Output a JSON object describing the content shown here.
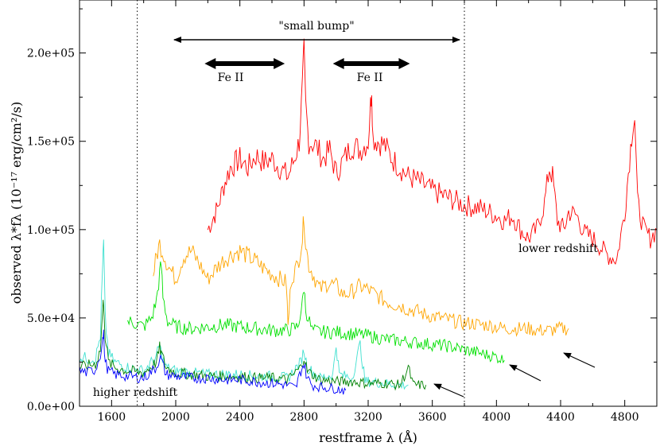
{
  "chart_data": {
    "type": "line",
    "xlabel": "restframe λ (Å)",
    "ylabel": "observed λ*fλ (10⁻¹⁷ erg/cm²/s)",
    "xlim": [
      1400,
      5000
    ],
    "ylim": [
      0,
      230000
    ],
    "xticks": [
      1600,
      2000,
      2400,
      2800,
      3200,
      3600,
      4000,
      4400,
      4800
    ],
    "yticks": [
      0,
      50000,
      100000,
      150000,
      200000
    ],
    "xtick_labels": [
      "1600",
      "2000",
      "2400",
      "2800",
      "3200",
      "3600",
      "4000",
      "4400",
      "4800"
    ],
    "ytick_labels": [
      "0.0e+00",
      "5.0e+04",
      "1.0e+05",
      "1.5e+05",
      "2.0e+05"
    ],
    "grid": false,
    "legend": "none",
    "vertical_lines": [
      1760,
      3800
    ],
    "annotations": {
      "small_bump": {
        "text": "\"small bump\"",
        "x_range": [
          1960,
          3800
        ]
      },
      "fe2_left": {
        "text": "Fe II",
        "x_range": [
          2180,
          2680
        ]
      },
      "fe2_right": {
        "text": "Fe II",
        "x_range": [
          2980,
          3460
        ]
      },
      "lower_redshift": "lower redshift",
      "higher_redshift": "higher redshift"
    },
    "series": [
      {
        "color": "#ff0000",
        "x": [
          2200,
          2260,
          2300,
          2340,
          2400,
          2450,
          2500,
          2550,
          2600,
          2650,
          2700,
          2740,
          2770,
          2790,
          2800,
          2810,
          2830,
          2870,
          2920,
          2960,
          3000,
          3050,
          3100,
          3150,
          3200,
          3215,
          3222,
          3230,
          3260,
          3300,
          3350,
          3400,
          3450,
          3500,
          3550,
          3600,
          3650,
          3700,
          3750,
          3800,
          3850,
          3900,
          3950,
          4000,
          4050,
          4100,
          4150,
          4200,
          4250,
          4300,
          4330,
          4350,
          4380,
          4420,
          4450,
          4500,
          4550,
          4600,
          4650,
          4700,
          4750,
          4800,
          4830,
          4850,
          4862,
          4880,
          4920,
          4960,
          5000
        ],
        "y": [
          100000,
          112000,
          125000,
          135000,
          140000,
          135000,
          142000,
          138000,
          140000,
          135000,
          130000,
          140000,
          150000,
          180000,
          200000,
          170000,
          150000,
          148000,
          140000,
          145000,
          132000,
          140000,
          148000,
          145000,
          150000,
          170000,
          182000,
          152000,
          150000,
          148000,
          140000,
          135000,
          130000,
          128000,
          125000,
          122000,
          120000,
          118000,
          116000,
          114000,
          113000,
          112000,
          110000,
          108000,
          105000,
          108000,
          100000,
          95000,
          100000,
          115000,
          135000,
          130000,
          105000,
          100000,
          110000,
          108000,
          98000,
          95000,
          90000,
          85000,
          83000,
          110000,
          140000,
          160000,
          163000,
          115000,
          100000,
          95000,
          100000
        ]
      },
      {
        "color": "#ffa500",
        "x": [
          1860,
          1880,
          1900,
          1950,
          2000,
          2050,
          2100,
          2150,
          2200,
          2250,
          2300,
          2350,
          2400,
          2450,
          2500,
          2550,
          2600,
          2650,
          2690,
          2700,
          2720,
          2760,
          2790,
          2800,
          2810,
          2830,
          2870,
          2900,
          2950,
          3000,
          3050,
          3100,
          3150,
          3200,
          3250,
          3300,
          3350,
          3400,
          3450,
          3500,
          3550,
          3600,
          3650,
          3700,
          3750,
          3800,
          3850,
          3900,
          3950,
          4000,
          4050,
          4100,
          4150,
          4200,
          4250,
          4300,
          4350,
          4400,
          4450
        ],
        "y": [
          75000,
          85000,
          92000,
          80000,
          72000,
          85000,
          88000,
          80000,
          72000,
          78000,
          83000,
          86000,
          88000,
          85000,
          82000,
          78000,
          75000,
          72000,
          70000,
          45000,
          72000,
          80000,
          95000,
          108000,
          92000,
          80000,
          72000,
          66000,
          70000,
          68000,
          63000,
          65000,
          68000,
          66000,
          63000,
          60000,
          58000,
          57000,
          55000,
          54000,
          52000,
          51000,
          50000,
          49000,
          48000,
          47000,
          47000,
          46000,
          46000,
          45000,
          44000,
          44000,
          44000,
          44000,
          43000,
          43000,
          43000,
          44000,
          44000
        ]
      },
      {
        "color": "#00e000",
        "x": [
          1700,
          1750,
          1800,
          1850,
          1880,
          1900,
          1910,
          1920,
          1950,
          2000,
          2100,
          2200,
          2300,
          2400,
          2500,
          2600,
          2700,
          2760,
          2790,
          2800,
          2810,
          2850,
          2900,
          3000,
          3100,
          3200,
          3300,
          3400,
          3500,
          3600,
          3700,
          3800,
          3900,
          4000,
          4050
        ],
        "y": [
          48000,
          47000,
          45000,
          50000,
          60000,
          75000,
          80000,
          62000,
          48000,
          45000,
          44000,
          45000,
          46000,
          45000,
          44000,
          43000,
          43000,
          45000,
          58000,
          68000,
          55000,
          43000,
          42000,
          42000,
          41000,
          40000,
          38000,
          37000,
          36000,
          35000,
          34000,
          32000,
          30000,
          28000,
          26000
        ]
      },
      {
        "color": "#40e0d0",
        "x": [
          1400,
          1450,
          1500,
          1530,
          1545,
          1550,
          1560,
          1580,
          1620,
          1700,
          1800,
          1880,
          1900,
          1910,
          1940,
          2000,
          2100,
          2200,
          2300,
          2400,
          2500,
          2600,
          2700,
          2780,
          2800,
          2820,
          2900,
          2980,
          3000,
          3020,
          3100,
          3150,
          3180,
          3200,
          3300,
          3400,
          3450
        ],
        "y": [
          28000,
          27000,
          27000,
          40000,
          80000,
          92000,
          50000,
          30000,
          25000,
          22000,
          20000,
          28000,
          35000,
          30000,
          22000,
          20000,
          19000,
          18000,
          18000,
          18000,
          17000,
          17000,
          16000,
          25000,
          32000,
          22000,
          16000,
          18000,
          35000,
          18000,
          16000,
          35000,
          14000,
          14000,
          13000,
          12000,
          12000
        ]
      },
      {
        "color": "#008000",
        "x": [
          1400,
          1450,
          1500,
          1530,
          1545,
          1550,
          1560,
          1580,
          1620,
          1700,
          1800,
          1880,
          1900,
          1910,
          1940,
          2000,
          2100,
          2200,
          2300,
          2400,
          2500,
          2600,
          2700,
          2780,
          2800,
          2820,
          2900,
          3000,
          3100,
          3200,
          3300,
          3400,
          3450,
          3480,
          3500,
          3560
        ],
        "y": [
          22000,
          23000,
          24000,
          32000,
          55000,
          60000,
          40000,
          25000,
          22000,
          20000,
          19000,
          25000,
          33000,
          30000,
          22000,
          19000,
          18000,
          17000,
          17000,
          17000,
          16000,
          16000,
          15000,
          22000,
          28000,
          20000,
          15000,
          14000,
          14000,
          13000,
          13000,
          12000,
          22000,
          12000,
          12000,
          12000
        ]
      },
      {
        "color": "#0000ff",
        "x": [
          1400,
          1450,
          1500,
          1530,
          1545,
          1550,
          1560,
          1580,
          1620,
          1700,
          1800,
          1880,
          1900,
          1910,
          1940,
          2000,
          2100,
          2200,
          2300,
          2400,
          2500,
          2600,
          2700,
          2750,
          2760,
          2780,
          2800,
          2820,
          2850,
          2900,
          3000,
          3060
        ],
        "y": [
          20000,
          19000,
          21000,
          30000,
          38000,
          40000,
          25000,
          20000,
          18000,
          17000,
          16000,
          22000,
          28000,
          26000,
          18000,
          17000,
          16000,
          16000,
          15000,
          15000,
          14000,
          13000,
          12000,
          10000,
          14000,
          20000,
          24000,
          16000,
          12000,
          11000,
          10000,
          9000
        ]
      }
    ]
  }
}
